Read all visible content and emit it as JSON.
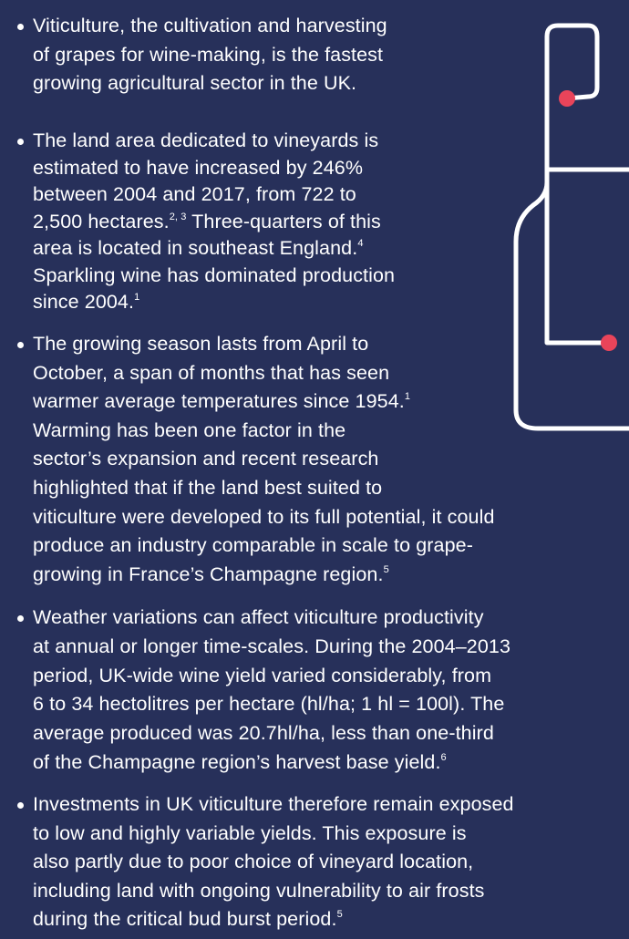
{
  "bullets": [
    {
      "lines": [
        [
          {
            "text": "Viticulture, the cultivation and harvesting"
          }
        ],
        [
          {
            "text": "of grapes for wine-making, is the fastest"
          }
        ],
        [
          {
            "text": "growing agricultural sector in the UK."
          }
        ]
      ]
    },
    {
      "lines": [
        [
          {
            "text": "The land area dedicated to vineyards is"
          }
        ],
        [
          {
            "text": "estimated to have increased by 246%"
          }
        ],
        [
          {
            "text": "between 2004 and 2017, from 722 to"
          }
        ],
        [
          {
            "text": "2,500 hectares."
          },
          {
            "sup": "2, 3"
          },
          {
            "text": " Three-quarters of this"
          }
        ],
        [
          {
            "text": "area is located in southeast England."
          },
          {
            "sup": "4"
          }
        ],
        [
          {
            "text": "Sparkling wine has dominated production"
          }
        ],
        [
          {
            "text": "since 2004."
          },
          {
            "sup": "1"
          }
        ]
      ]
    },
    {
      "lines": [
        [
          {
            "text": "The growing season lasts from April to"
          }
        ],
        [
          {
            "text": "October, a span of months that has seen"
          }
        ],
        [
          {
            "text": "warmer average temperatures since 1954."
          },
          {
            "sup": "1"
          }
        ],
        [
          {
            "text": "Warming has been one factor in the"
          }
        ],
        [
          {
            "text": "sector’s expansion and recent research"
          }
        ],
        [
          {
            "text": "highlighted that if the land best suited to"
          }
        ],
        [
          {
            "text": "viticulture were developed to its full potential, it could"
          }
        ],
        [
          {
            "text": "produce an industry comparable in scale to grape-"
          }
        ],
        [
          {
            "text": "growing in France’s Champagne region."
          },
          {
            "sup": "5"
          }
        ]
      ]
    },
    {
      "lines": [
        [
          {
            "text": "Weather variations can affect viticulture productivity"
          }
        ],
        [
          {
            "text": "at annual or longer time-scales. During the 2004–2013"
          }
        ],
        [
          {
            "text": "period, UK-wide wine yield varied considerably, from"
          }
        ],
        [
          {
            "text": "6 to 34 hectolitres per hectare (hl/ha; 1 hl = 100l). The"
          }
        ],
        [
          {
            "text": "average produced was 20.7hl/ha, less than one-third"
          }
        ],
        [
          {
            "text": "of the Champagne region’s harvest base yield."
          },
          {
            "sup": "6"
          }
        ]
      ]
    },
    {
      "lines": [
        [
          {
            "text": "Investments in UK viticulture therefore remain exposed"
          }
        ],
        [
          {
            "text": "to low and highly variable yields. This exposure is"
          }
        ],
        [
          {
            "text": "also partly due to poor choice of vineyard location,"
          }
        ],
        [
          {
            "text": "including land with ongoing vulnerability to air frosts"
          }
        ],
        [
          {
            "text": "during the critical bud burst period."
          },
          {
            "sup": "5"
          }
        ]
      ]
    }
  ]
}
